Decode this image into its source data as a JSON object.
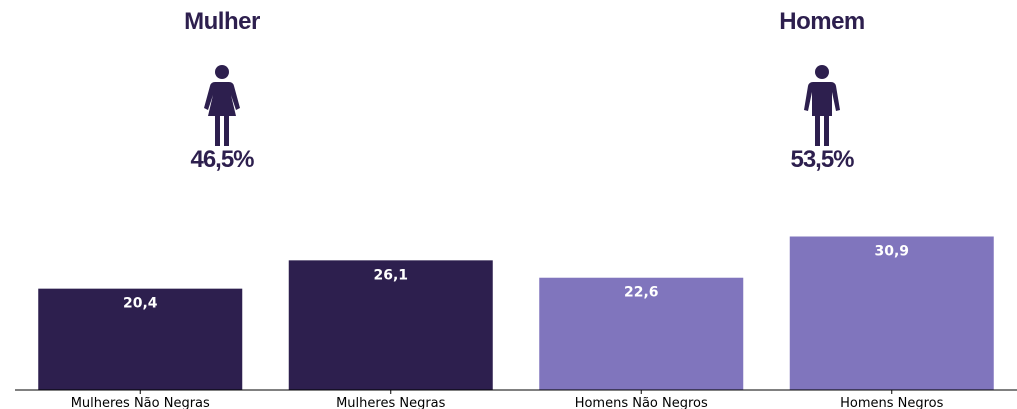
{
  "gender": {
    "female": {
      "title": "Mulher",
      "percent": "46,5%",
      "icon": "female-person-icon",
      "color": "#2d1f4e"
    },
    "male": {
      "title": "Homem",
      "percent": "53,5%",
      "icon": "male-person-icon",
      "color": "#2d1f4e"
    }
  },
  "chart_data": {
    "type": "bar",
    "title": "",
    "xlabel": "",
    "ylabel": "",
    "categories": [
      "Mulheres Não Negras",
      "Mulheres Negras",
      "Homens Não Negros",
      "Homens Negros"
    ],
    "values": [
      20.4,
      26.1,
      22.6,
      30.9
    ],
    "value_labels": [
      "20,4",
      "26,1",
      "22,6",
      "30,9"
    ],
    "colors": [
      "#2d1f4e",
      "#2d1f4e",
      "#8075bd",
      "#8075bd"
    ],
    "ylim": [
      0,
      31
    ],
    "grid": false,
    "y_axis_visible": false
  }
}
